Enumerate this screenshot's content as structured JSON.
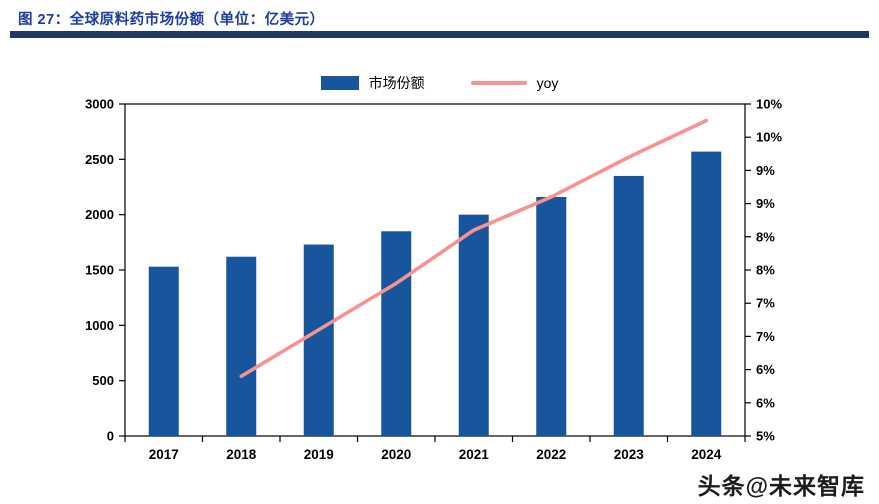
{
  "header": {
    "title": "图 27：全球原料药市场份额（单位：亿美元）"
  },
  "watermark": "头条@未来智库",
  "chart_data": {
    "type": "bar+line combo",
    "title": "全球原料药市场份额（单位：亿美元）",
    "categories": [
      "2017",
      "2018",
      "2019",
      "2020",
      "2021",
      "2022",
      "2023",
      "2024"
    ],
    "series": [
      {
        "name": "市场份额",
        "type": "bar",
        "axis": "left",
        "color": "#17569c",
        "values": [
          1530,
          1620,
          1730,
          1850,
          2000,
          2160,
          2350,
          2570
        ]
      },
      {
        "name": "yoy",
        "type": "line",
        "axis": "right",
        "color": "#f9918e",
        "start_category_index": 1,
        "values": [
          5.9,
          6.6,
          7.3,
          8.1,
          8.6,
          9.2,
          9.75
        ]
      }
    ],
    "left_axis": {
      "min": 0,
      "max": 3000,
      "step": 500,
      "tick_labels_bottom_to_top": [
        "0",
        "500",
        "1000",
        "1500",
        "2000",
        "2500",
        "3000"
      ]
    },
    "right_axis": {
      "min": 5,
      "max": 10,
      "step": 0.5,
      "tick_labels_top_to_bottom": [
        "10%",
        "10%",
        "9%",
        "9%",
        "8%",
        "8%",
        "7%",
        "7%",
        "6%",
        "6%",
        "5%"
      ]
    },
    "legend": [
      {
        "label": "市场份额",
        "swatch": "bar"
      },
      {
        "label": "yoy",
        "swatch": "line"
      }
    ],
    "grid": false,
    "legend_position": "top-center",
    "frame_color": "#000000"
  }
}
